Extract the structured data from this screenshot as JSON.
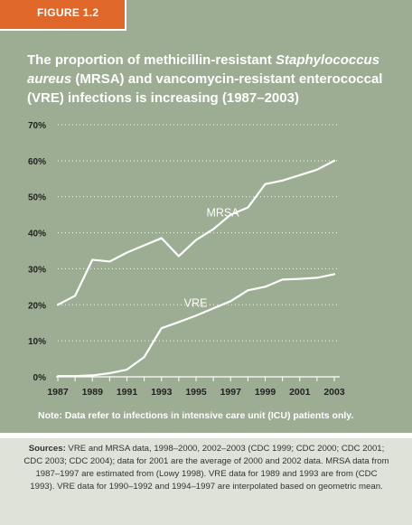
{
  "figure": {
    "label": "FIGURE 1.2"
  },
  "title": {
    "part1": "The proportion of methicillin-resistant ",
    "italic1": "Staphylococcus aureus",
    "part2": " (MRSA) and vancomycin-resistant enterococcal (VRE) infections is increasing (1987–2003)"
  },
  "note": "Note: Data refer to infections in intensive care unit (ICU) patients only.",
  "sources": {
    "label": "Sources:",
    "text": " VRE and MRSA data, 1998–2000, 2002–2003 (CDC 1999; CDC 2000; CDC 2001; CDC 2003; CDC 2004); data for 2001 are the average of 2000 and 2002 data. MRSA data from 1987–1997 are estimated from (Lowy 1998). VRE data for 1989 and 1993 are from (CDC 1993). VRE data for 1990–1992 and 1994–1997 are interpolated based on geometric mean."
  },
  "colors": {
    "panel": "#9cad93",
    "tab": "#e0672a",
    "line": "#ffffff",
    "axis_text": "#222222",
    "sources_bg": "#dee2d8"
  },
  "chart_data": {
    "type": "line",
    "x": [
      1987,
      1988,
      1989,
      1990,
      1991,
      1992,
      1993,
      1994,
      1995,
      1996,
      1997,
      1998,
      1999,
      2000,
      2001,
      2002,
      2003
    ],
    "series": [
      {
        "name": "MRSA",
        "values": [
          20,
          22.5,
          32.5,
          32,
          34.5,
          36.5,
          38.5,
          33.5,
          38,
          41,
          45,
          47,
          53.5,
          54.5,
          56,
          57.5,
          60
        ]
      },
      {
        "name": "VRE",
        "values": [
          0.2,
          0.2,
          0.4,
          1,
          2,
          5.5,
          13.5,
          15.2,
          17,
          19,
          21,
          24,
          25,
          27,
          27.2,
          27.5,
          28.5
        ]
      }
    ],
    "xticks": [
      "1987",
      "1989",
      "1991",
      "1993",
      "1995",
      "1997",
      "1999",
      "2001",
      "2003"
    ],
    "yticks": [
      "0%",
      "10%",
      "20%",
      "30%",
      "40%",
      "50%",
      "60%",
      "70%"
    ],
    "ylim": [
      0,
      70
    ],
    "xlim": [
      1987,
      2003
    ],
    "grid": true
  }
}
